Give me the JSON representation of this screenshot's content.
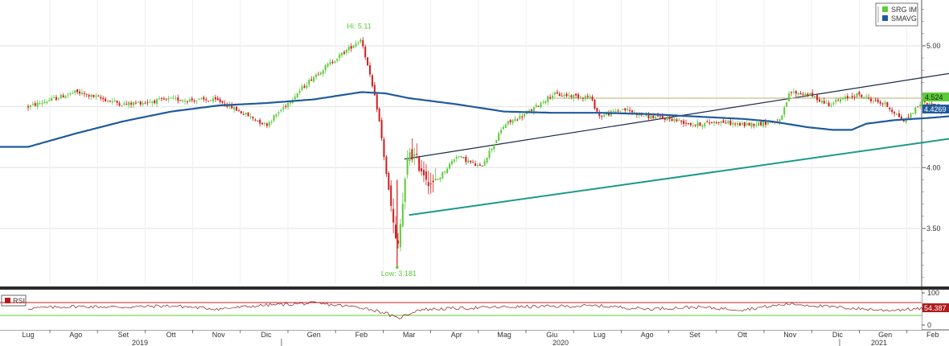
{
  "chart_data": {
    "type": "candlestick",
    "ticker": "SRG IM",
    "legend": [
      {
        "label": "SRG IM",
        "color": "#5ccb3a"
      },
      {
        "label": "SMAVG",
        "color": "#1f5a9e"
      }
    ],
    "legend_position": "top-right",
    "ylim": [
      3.05,
      5.35
    ],
    "yticks": [
      "5.00",
      "4.50",
      "4.00",
      "3.50"
    ],
    "months": [
      "Lug",
      "Ago",
      "Set",
      "Ott",
      "Nov",
      "Dic",
      "Gen",
      "Feb",
      "Mar",
      "Apr",
      "Mag",
      "Giu",
      "Lug",
      "Ago",
      "Set",
      "Ott",
      "Nov",
      "Dic",
      "Gen",
      "Feb"
    ],
    "years": [
      "2019",
      "2020",
      "2021"
    ],
    "hi_label": "Hi: 5.11",
    "low_label": "Low: 3.181",
    "last_price": "4.524",
    "last_smavg": "4.4269",
    "price_anchors": [
      [
        0,
        4.5
      ],
      [
        1,
        4.62
      ],
      [
        2,
        4.52
      ],
      [
        3,
        4.56
      ],
      [
        4,
        4.55
      ],
      [
        5,
        4.35
      ],
      [
        6,
        4.75
      ],
      [
        7,
        5.06
      ],
      [
        7.35,
        4.45
      ],
      [
        7.75,
        3.3
      ],
      [
        8,
        4.15
      ],
      [
        8.5,
        3.85
      ],
      [
        9,
        4.1
      ],
      [
        9.5,
        4.0
      ],
      [
        10,
        4.35
      ],
      [
        10.5,
        4.45
      ],
      [
        11,
        4.6
      ],
      [
        11.8,
        4.58
      ],
      [
        12,
        4.42
      ],
      [
        12.5,
        4.48
      ],
      [
        13,
        4.42
      ],
      [
        13.5,
        4.4
      ],
      [
        14,
        4.35
      ],
      [
        14.5,
        4.38
      ],
      [
        15,
        4.35
      ],
      [
        15.8,
        4.38
      ],
      [
        16,
        4.62
      ],
      [
        16.4,
        4.6
      ],
      [
        16.8,
        4.52
      ],
      [
        17.4,
        4.6
      ],
      [
        18,
        4.52
      ],
      [
        18.4,
        4.38
      ],
      [
        18.8,
        4.55
      ],
      [
        19.2,
        4.45
      ],
      [
        19.6,
        4.52
      ]
    ],
    "smavg_anchors": [
      [
        0,
        4.17
      ],
      [
        1,
        4.28
      ],
      [
        2,
        4.38
      ],
      [
        3,
        4.46
      ],
      [
        4,
        4.51
      ],
      [
        5,
        4.53
      ],
      [
        6,
        4.56
      ],
      [
        7,
        4.62
      ],
      [
        7.5,
        4.61
      ],
      [
        8,
        4.57
      ],
      [
        9,
        4.52
      ],
      [
        10,
        4.46
      ],
      [
        11,
        4.45
      ],
      [
        12,
        4.45
      ],
      [
        13,
        4.44
      ],
      [
        14,
        4.42
      ],
      [
        15,
        4.4
      ],
      [
        15.6,
        4.38
      ],
      [
        16.4,
        4.33
      ],
      [
        16.9,
        4.31
      ],
      [
        17.3,
        4.31
      ],
      [
        17.6,
        4.36
      ],
      [
        18.2,
        4.39
      ],
      [
        19,
        4.41
      ],
      [
        19.6,
        4.43
      ]
    ],
    "hi_point": [
      7,
      5.11
    ],
    "low_point": [
      7.75,
      3.181
    ],
    "trendlines": [
      {
        "from": [
          7.9,
          4.07
        ],
        "to": [
          19.95,
          4.81
        ],
        "color": "#1a2a4a"
      },
      {
        "from": [
          8.0,
          3.61
        ],
        "to": [
          19.95,
          4.27
        ],
        "color": "#1a9a8a"
      },
      {
        "from": [
          10.9,
          4.57
        ],
        "to": [
          19.95,
          4.57
        ],
        "color": "#c8c08a"
      }
    ],
    "rsi": {
      "label": "RSI",
      "value": "54.387",
      "yticks": [
        "100",
        "50",
        "0"
      ],
      "ylim": [
        0,
        100
      ],
      "upper_band": 70,
      "lower_band": 30,
      "anchors": [
        [
          0,
          52
        ],
        [
          1,
          58
        ],
        [
          2,
          56
        ],
        [
          3,
          60
        ],
        [
          4,
          50
        ],
        [
          5,
          62
        ],
        [
          6,
          68
        ],
        [
          7,
          55
        ],
        [
          7.5,
          38
        ],
        [
          7.75,
          20
        ],
        [
          8.2,
          48
        ],
        [
          9,
          52
        ],
        [
          10,
          56
        ],
        [
          11,
          58
        ],
        [
          12,
          60
        ],
        [
          13,
          50
        ],
        [
          14,
          56
        ],
        [
          15,
          48
        ],
        [
          16,
          66
        ],
        [
          17,
          55
        ],
        [
          18,
          46
        ],
        [
          19,
          52
        ],
        [
          19.6,
          54
        ]
      ]
    }
  }
}
